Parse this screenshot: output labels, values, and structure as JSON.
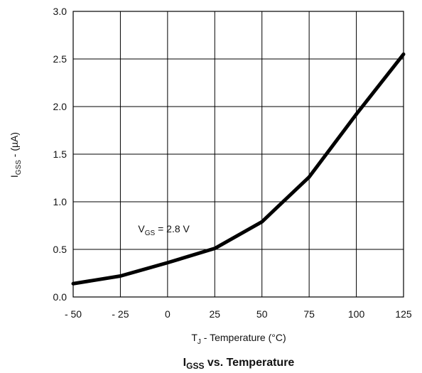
{
  "chart_data": {
    "type": "line",
    "x": [
      -50,
      -25,
      0,
      25,
      50,
      75,
      100,
      125
    ],
    "series": [
      {
        "name": "",
        "values": [
          0.14,
          0.22,
          0.36,
          0.51,
          0.79,
          1.26,
          1.92,
          2.55
        ]
      }
    ],
    "xlim": [
      -50,
      125
    ],
    "ylim": [
      0,
      3
    ],
    "x_ticks": [
      "- 50",
      "- 25",
      "0",
      "25",
      "50",
      "75",
      "100",
      "125"
    ],
    "y_ticks": [
      "0.0",
      "0.5",
      "1.0",
      "1.5",
      "2.0",
      "2.5",
      "3.0"
    ],
    "grid": true,
    "xlabel": {
      "main": "T",
      "sub": "J",
      "rest": " - Temperature (°C)"
    },
    "ylabel": {
      "main": "I",
      "sub": "GSS",
      "rest": " - (µA)"
    },
    "title": {
      "main": "I",
      "sub": "GSS",
      "rest": " vs. Temperature"
    },
    "annotation": {
      "main": "V",
      "sub": "GS",
      "rest": " = 2.8 V",
      "x": -25,
      "y": 0.68
    },
    "line_color": "#000000",
    "grid_color": "#000000"
  }
}
